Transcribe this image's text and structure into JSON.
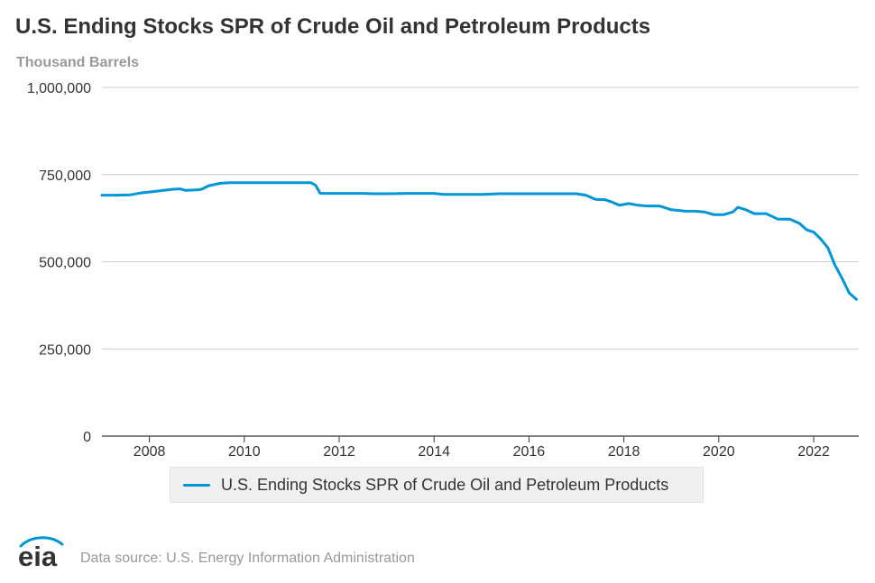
{
  "title": "U.S. Ending Stocks SPR of Crude Oil and Petroleum Products",
  "units": "Thousand Barrels",
  "source": "Data source: U.S. Energy Information Administration",
  "logo_text": "eia",
  "colors": {
    "series": "#0096d7",
    "grid": "#cccccc",
    "axis": "#333333",
    "text": "#333333",
    "muted": "#999999"
  },
  "chart_data": {
    "type": "line",
    "title": "U.S. Ending Stocks SPR of Crude Oil and Petroleum Products",
    "ylabel": "Thousand Barrels",
    "xlabel": "",
    "xlim": [
      2007.0,
      2022.95
    ],
    "ylim": [
      0,
      1000000
    ],
    "grid": true,
    "legend_placement": "bottom",
    "y_ticks": [
      0,
      250000,
      500000,
      750000,
      1000000
    ],
    "y_tick_labels": [
      "0",
      "250,000",
      "500,000",
      "750,000",
      "1,000,000"
    ],
    "x_ticks": [
      2008,
      2010,
      2012,
      2014,
      2016,
      2018,
      2020,
      2022
    ],
    "x_tick_labels": [
      "2008",
      "2010",
      "2012",
      "2014",
      "2016",
      "2018",
      "2020",
      "2022"
    ],
    "series": [
      {
        "name": "U.S. Ending Stocks SPR of Crude Oil and Petroleum Products",
        "color": "#0096d7",
        "x": [
          2007.0,
          2007.3,
          2007.6,
          2007.8,
          2008.0,
          2008.3,
          2008.5,
          2008.65,
          2008.75,
          2009.0,
          2009.1,
          2009.25,
          2009.5,
          2009.7,
          2010.0,
          2010.5,
          2011.0,
          2011.4,
          2011.5,
          2011.6,
          2012.0,
          2012.5,
          2012.75,
          2013.0,
          2013.5,
          2014.0,
          2014.2,
          2014.5,
          2015.0,
          2015.4,
          2015.5,
          2016.0,
          2016.5,
          2017.0,
          2017.2,
          2017.4,
          2017.6,
          2017.75,
          2017.9,
          2018.1,
          2018.3,
          2018.5,
          2018.75,
          2019.0,
          2019.3,
          2019.5,
          2019.7,
          2019.9,
          2020.1,
          2020.3,
          2020.4,
          2020.55,
          2020.75,
          2021.0,
          2021.25,
          2021.5,
          2021.7,
          2021.85,
          2022.0,
          2022.15,
          2022.3,
          2022.45,
          2022.6,
          2022.75,
          2022.9
        ],
        "values": [
          691000,
          691000,
          692000,
          697000,
          700000,
          705000,
          708000,
          709000,
          705000,
          706000,
          708000,
          718000,
          725000,
          727000,
          727000,
          727000,
          727000,
          727000,
          720000,
          696000,
          696000,
          696000,
          695000,
          695000,
          696000,
          696000,
          693000,
          693000,
          693000,
          695000,
          695000,
          695000,
          695000,
          695000,
          691000,
          679000,
          678000,
          671000,
          662000,
          667000,
          662000,
          660000,
          660000,
          649000,
          645000,
          645000,
          643000,
          635000,
          635000,
          643000,
          656000,
          650000,
          638000,
          638000,
          622000,
          622000,
          610000,
          592000,
          585000,
          565000,
          540000,
          490000,
          452000,
          410000,
          392000
        ]
      }
    ]
  }
}
